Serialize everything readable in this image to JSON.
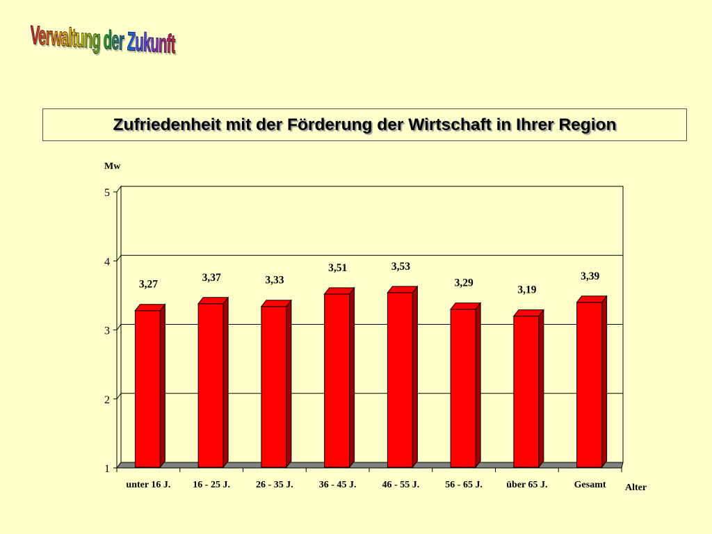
{
  "header": {
    "logo_text": "Verwaltung der Zukunft"
  },
  "chart_data": {
    "type": "bar",
    "title": "Zufriedenheit mit der Förderung der Wirtschaft in Ihrer Region",
    "ylabel": "Mw",
    "xlabel": "Alter",
    "ylim": [
      1,
      5
    ],
    "yticks": [
      1,
      2,
      3,
      4,
      5
    ],
    "categories": [
      "unter 16 J.",
      "16 - 25 J.",
      "26 - 35 J.",
      "36 - 45 J.",
      "46 - 55 J.",
      "56 - 65 J.",
      "über 65 J.",
      "Gesamt"
    ],
    "values": [
      3.27,
      3.37,
      3.33,
      3.51,
      3.53,
      3.29,
      3.19,
      3.39
    ],
    "value_labels": [
      "3,27",
      "3,37",
      "3,33",
      "3,51",
      "3,53",
      "3,29",
      "3,19",
      "3,39"
    ],
    "grid": true,
    "legend": "none",
    "bar_color": "#ff0000",
    "bar_shade_color": "#a00000",
    "floor_color": "#808080",
    "background_color": "#ffffcc"
  }
}
